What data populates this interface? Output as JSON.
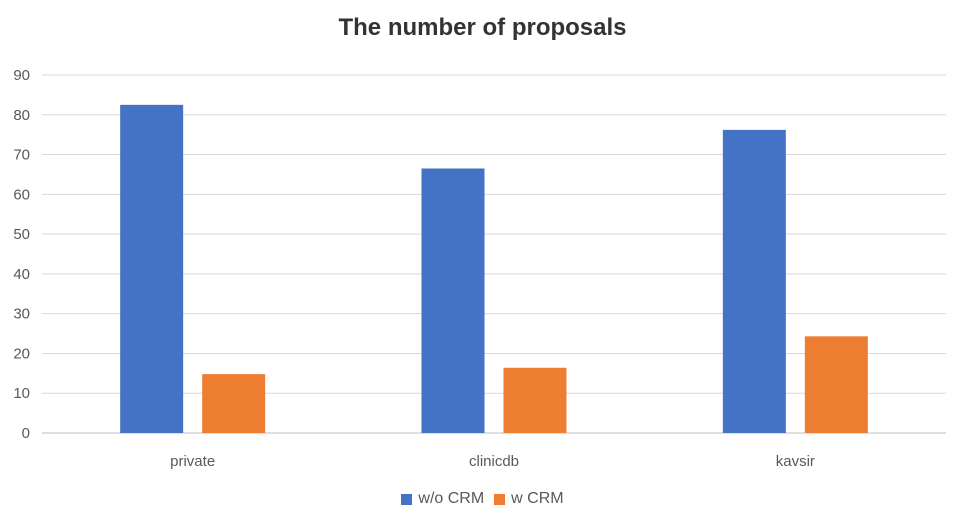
{
  "chart_data": {
    "type": "bar",
    "title": "The number of proposals",
    "categories": [
      "private",
      "clinicdb",
      "kavsir"
    ],
    "series": [
      {
        "name": "w/o CRM",
        "color": "#4472C4",
        "values": [
          82.5,
          66.5,
          76.2
        ]
      },
      {
        "name": "w CRM",
        "color": "#ED7D31",
        "values": [
          14.8,
          16.4,
          24.3
        ]
      }
    ],
    "ylim": [
      0,
      90
    ],
    "yticks": [
      "0",
      "10",
      "20",
      "30",
      "40",
      "50",
      "60",
      "70",
      "80",
      "90"
    ],
    "grid": true,
    "legend": "bottom"
  }
}
